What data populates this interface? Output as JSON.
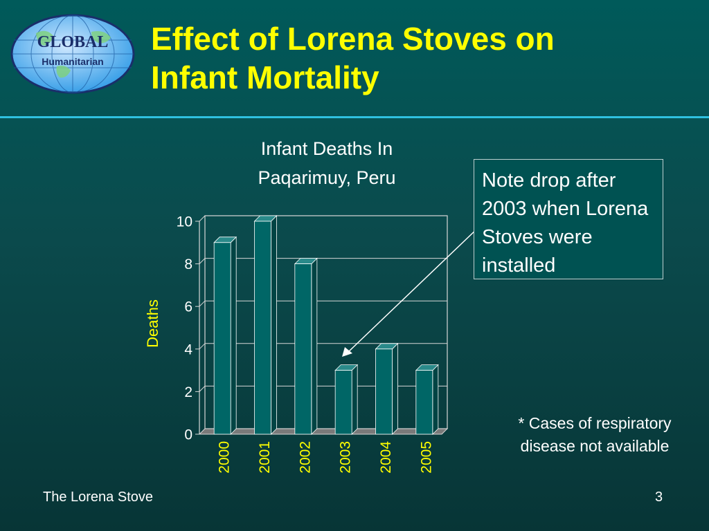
{
  "slide": {
    "title_line1": "Effect of Lorena Stoves on",
    "title_line2": "Infant Mortality",
    "logo_text_top": "GLOBAL",
    "logo_text_bottom": "Humanitarian",
    "note": "Note drop after 2003 when Lorena Stoves were installed",
    "footnote_line1": "* Cases of respiratory",
    "footnote_line2": "disease not available",
    "footer_left": "The Lorena Stove",
    "page_number": "3"
  },
  "colors": {
    "title": "#ffff00",
    "bar_front": "#006666",
    "axis_labels": "#ffff00",
    "accent_rule": "#2fc0e0"
  },
  "chart_data": {
    "type": "bar",
    "title_line1": "Infant Deaths In",
    "title_line2": "Paqarimuy, Peru",
    "ylabel": "Deaths",
    "xlabel": "",
    "categories": [
      "2000",
      "2001",
      "2002",
      "2003",
      "2004",
      "2005"
    ],
    "values": [
      9,
      10,
      8,
      3,
      4,
      3
    ],
    "ylim": [
      0,
      10
    ],
    "yticks": [
      "0",
      "2",
      "4",
      "6",
      "8",
      "10"
    ],
    "grid": true,
    "style": "3d-column"
  }
}
